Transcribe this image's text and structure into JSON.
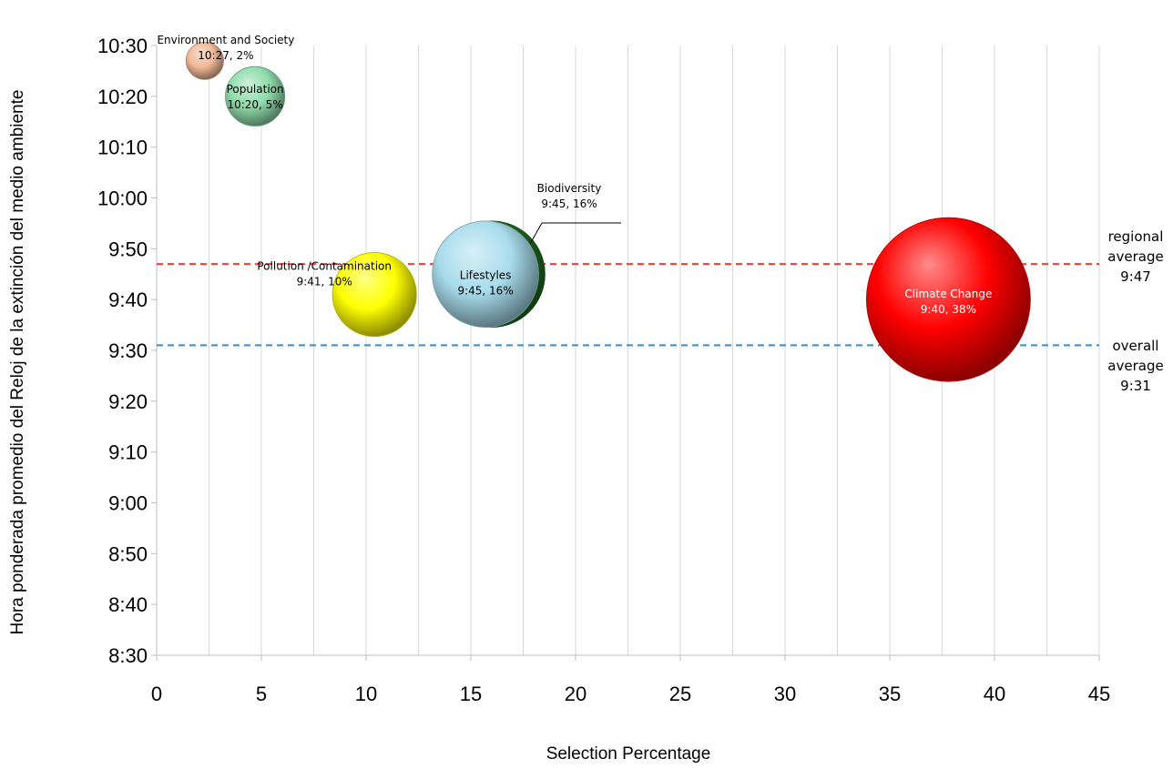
{
  "chart_data": {
    "type": "bubble",
    "xlabel": "Selection Percentage",
    "ylabel": "Hora ponderada promedio del Reloj de la extinción del medio ambiente",
    "xlim": [
      0,
      45
    ],
    "ylim": [
      "8:30",
      "10:30"
    ],
    "x_ticks": [
      "0",
      "5",
      "10",
      "15",
      "20",
      "25",
      "30",
      "35",
      "40",
      "45"
    ],
    "y_ticks": [
      "8:30",
      "8:40",
      "8:50",
      "9:00",
      "9:10",
      "9:20",
      "9:30",
      "9:40",
      "9:50",
      "10:00",
      "10:10",
      "10:20",
      "10:30"
    ],
    "grid": "vertical",
    "series": [
      {
        "name": "Environment and Society",
        "x": 2.3,
        "y": "10:27",
        "size": 2,
        "label": "10:27, 2%",
        "color": "#f0b896"
      },
      {
        "name": "Population",
        "x": 4.7,
        "y": "10:20",
        "size": 5,
        "label": "10:20, 5%",
        "color": "#8fdcab"
      },
      {
        "name": "Pollution /Contamination",
        "x": 10.4,
        "y": "9:41",
        "size": 10,
        "label": "9:41, 10%",
        "color": "#ffff00"
      },
      {
        "name": "Lifestyles",
        "x": 15.7,
        "y": "9:45",
        "size": 16,
        "label": "9:45, 16%",
        "color": "#a8dcec"
      },
      {
        "name": "Biodiversity",
        "x": 16.0,
        "y": "9:45",
        "size": 16,
        "label": "9:45, 16%",
        "color": "#1e6b1e"
      },
      {
        "name": "Climate Change",
        "x": 37.8,
        "y": "9:40",
        "size": 38,
        "label": "9:40, 38%",
        "color": "#ff0000"
      }
    ],
    "reference_lines": [
      {
        "name": "regional average",
        "y": "9:47",
        "label_lines": [
          "regional",
          "average",
          "9:47"
        ],
        "color": "#e8413c"
      },
      {
        "name": "overall average",
        "y": "9:31",
        "label_lines": [
          "overall",
          "average",
          "9:31"
        ],
        "color": "#3d8ac4"
      }
    ]
  }
}
